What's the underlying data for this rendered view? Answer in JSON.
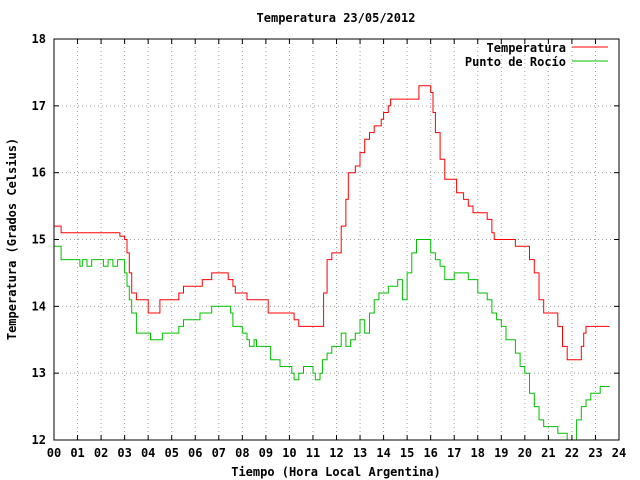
{
  "chart_data": {
    "type": "line",
    "title": "Temperatura 23/05/2012",
    "xlabel": "Tiempo (Hora Local Argentina)",
    "ylabel": "Temperatura (Grados Celsius)",
    "xlim": [
      0,
      24
    ],
    "ylim": [
      12,
      18
    ],
    "grid": true,
    "legend_position": "top-right",
    "x_ticks": [
      "00",
      "01",
      "02",
      "03",
      "04",
      "05",
      "06",
      "07",
      "08",
      "09",
      "10",
      "11",
      "12",
      "13",
      "14",
      "15",
      "16",
      "17",
      "18",
      "19",
      "20",
      "21",
      "22",
      "23",
      "24"
    ],
    "y_ticks": [
      "12",
      "13",
      "14",
      "15",
      "16",
      "17",
      "18"
    ],
    "series": [
      {
        "name": "Temperatura",
        "color": "#ff0000",
        "points": [
          [
            0.0,
            15.2
          ],
          [
            0.3,
            15.1
          ],
          [
            0.6,
            15.1
          ],
          [
            1.0,
            15.1
          ],
          [
            1.5,
            15.1
          ],
          [
            2.0,
            15.1
          ],
          [
            2.5,
            15.1
          ],
          [
            2.8,
            15.05
          ],
          [
            3.0,
            15.0
          ],
          [
            3.1,
            14.8
          ],
          [
            3.2,
            14.5
          ],
          [
            3.3,
            14.2
          ],
          [
            3.5,
            14.1
          ],
          [
            3.9,
            14.1
          ],
          [
            4.0,
            13.9
          ],
          [
            4.4,
            13.9
          ],
          [
            4.5,
            14.1
          ],
          [
            4.9,
            14.1
          ],
          [
            5.2,
            14.1
          ],
          [
            5.3,
            14.2
          ],
          [
            5.5,
            14.3
          ],
          [
            5.9,
            14.3
          ],
          [
            6.1,
            14.3
          ],
          [
            6.3,
            14.4
          ],
          [
            6.7,
            14.5
          ],
          [
            7.3,
            14.5
          ],
          [
            7.4,
            14.4
          ],
          [
            7.6,
            14.3
          ],
          [
            7.7,
            14.2
          ],
          [
            8.0,
            14.2
          ],
          [
            8.2,
            14.1
          ],
          [
            9.0,
            14.1
          ],
          [
            9.1,
            13.9
          ],
          [
            10.0,
            13.9
          ],
          [
            10.2,
            13.8
          ],
          [
            10.4,
            13.7
          ],
          [
            10.7,
            13.7
          ],
          [
            11.0,
            13.7
          ],
          [
            11.3,
            13.7
          ],
          [
            11.45,
            14.2
          ],
          [
            11.6,
            14.7
          ],
          [
            11.8,
            14.8
          ],
          [
            12.0,
            14.8
          ],
          [
            12.2,
            15.2
          ],
          [
            12.4,
            15.6
          ],
          [
            12.5,
            16.0
          ],
          [
            12.8,
            16.1
          ],
          [
            13.0,
            16.3
          ],
          [
            13.2,
            16.5
          ],
          [
            13.4,
            16.6
          ],
          [
            13.6,
            16.7
          ],
          [
            13.9,
            16.8
          ],
          [
            14.0,
            16.9
          ],
          [
            14.2,
            17.0
          ],
          [
            14.3,
            17.1
          ],
          [
            14.8,
            17.1
          ],
          [
            15.3,
            17.1
          ],
          [
            15.5,
            17.3
          ],
          [
            15.9,
            17.3
          ],
          [
            16.0,
            17.2
          ],
          [
            16.1,
            16.9
          ],
          [
            16.2,
            16.6
          ],
          [
            16.4,
            16.2
          ],
          [
            16.6,
            15.9
          ],
          [
            17.0,
            15.9
          ],
          [
            17.1,
            15.7
          ],
          [
            17.4,
            15.6
          ],
          [
            17.6,
            15.5
          ],
          [
            17.8,
            15.4
          ],
          [
            18.2,
            15.4
          ],
          [
            18.4,
            15.3
          ],
          [
            18.6,
            15.1
          ],
          [
            18.7,
            15.0
          ],
          [
            19.5,
            15.0
          ],
          [
            19.6,
            14.9
          ],
          [
            20.0,
            14.9
          ],
          [
            20.2,
            14.7
          ],
          [
            20.4,
            14.5
          ],
          [
            20.6,
            14.1
          ],
          [
            20.8,
            13.9
          ],
          [
            21.2,
            13.9
          ],
          [
            21.4,
            13.7
          ],
          [
            21.6,
            13.4
          ],
          [
            21.8,
            13.2
          ],
          [
            22.3,
            13.2
          ],
          [
            22.4,
            13.4
          ],
          [
            22.5,
            13.6
          ],
          [
            22.6,
            13.7
          ],
          [
            23.0,
            13.7
          ],
          [
            23.6,
            13.7
          ]
        ]
      },
      {
        "name": "Punto de Rocío",
        "color": "#00c000",
        "points": [
          [
            0.0,
            14.9
          ],
          [
            0.3,
            14.7
          ],
          [
            0.6,
            14.7
          ],
          [
            1.0,
            14.7
          ],
          [
            1.1,
            14.6
          ],
          [
            1.2,
            14.7
          ],
          [
            1.4,
            14.6
          ],
          [
            1.6,
            14.7
          ],
          [
            2.0,
            14.7
          ],
          [
            2.1,
            14.6
          ],
          [
            2.3,
            14.7
          ],
          [
            2.5,
            14.6
          ],
          [
            2.7,
            14.7
          ],
          [
            2.9,
            14.7
          ],
          [
            3.0,
            14.5
          ],
          [
            3.1,
            14.3
          ],
          [
            3.2,
            14.1
          ],
          [
            3.3,
            13.9
          ],
          [
            3.5,
            13.6
          ],
          [
            4.0,
            13.6
          ],
          [
            4.1,
            13.5
          ],
          [
            4.5,
            13.5
          ],
          [
            4.6,
            13.6
          ],
          [
            5.2,
            13.6
          ],
          [
            5.3,
            13.7
          ],
          [
            5.5,
            13.8
          ],
          [
            6.0,
            13.8
          ],
          [
            6.2,
            13.9
          ],
          [
            6.5,
            13.9
          ],
          [
            6.7,
            14.0
          ],
          [
            7.3,
            14.0
          ],
          [
            7.5,
            13.9
          ],
          [
            7.6,
            13.7
          ],
          [
            7.9,
            13.7
          ],
          [
            8.0,
            13.6
          ],
          [
            8.2,
            13.5
          ],
          [
            8.3,
            13.4
          ],
          [
            8.5,
            13.5
          ],
          [
            8.6,
            13.4
          ],
          [
            9.0,
            13.4
          ],
          [
            9.2,
            13.2
          ],
          [
            9.5,
            13.2
          ],
          [
            9.6,
            13.1
          ],
          [
            9.8,
            13.1
          ],
          [
            10.0,
            13.1
          ],
          [
            10.1,
            13.0
          ],
          [
            10.2,
            12.9
          ],
          [
            10.4,
            13.0
          ],
          [
            10.6,
            13.1
          ],
          [
            10.8,
            13.1
          ],
          [
            11.0,
            13.0
          ],
          [
            11.1,
            12.9
          ],
          [
            11.3,
            13.0
          ],
          [
            11.4,
            13.2
          ],
          [
            11.6,
            13.3
          ],
          [
            11.8,
            13.4
          ],
          [
            12.0,
            13.4
          ],
          [
            12.2,
            13.6
          ],
          [
            12.4,
            13.4
          ],
          [
            12.6,
            13.5
          ],
          [
            12.8,
            13.6
          ],
          [
            13.0,
            13.8
          ],
          [
            13.2,
            13.6
          ],
          [
            13.4,
            13.9
          ],
          [
            13.6,
            14.1
          ],
          [
            13.8,
            14.2
          ],
          [
            14.0,
            14.2
          ],
          [
            14.2,
            14.3
          ],
          [
            14.4,
            14.3
          ],
          [
            14.6,
            14.4
          ],
          [
            14.8,
            14.1
          ],
          [
            15.0,
            14.5
          ],
          [
            15.2,
            14.8
          ],
          [
            15.4,
            15.0
          ],
          [
            15.8,
            15.0
          ],
          [
            16.0,
            14.8
          ],
          [
            16.2,
            14.7
          ],
          [
            16.4,
            14.6
          ],
          [
            16.6,
            14.4
          ],
          [
            17.0,
            14.5
          ],
          [
            17.2,
            14.5
          ],
          [
            17.4,
            14.5
          ],
          [
            17.6,
            14.4
          ],
          [
            18.0,
            14.2
          ],
          [
            18.2,
            14.2
          ],
          [
            18.4,
            14.1
          ],
          [
            18.6,
            13.9
          ],
          [
            18.8,
            13.8
          ],
          [
            19.0,
            13.7
          ],
          [
            19.2,
            13.5
          ],
          [
            19.6,
            13.3
          ],
          [
            19.8,
            13.1
          ],
          [
            20.0,
            13.0
          ],
          [
            20.2,
            12.7
          ],
          [
            20.4,
            12.5
          ],
          [
            20.6,
            12.3
          ],
          [
            20.8,
            12.2
          ],
          [
            21.2,
            12.2
          ],
          [
            21.4,
            12.1
          ],
          [
            21.6,
            12.1
          ],
          [
            21.8,
            12.0
          ],
          [
            22.0,
            12.0
          ],
          [
            22.2,
            12.3
          ],
          [
            22.4,
            12.5
          ],
          [
            22.6,
            12.6
          ],
          [
            22.8,
            12.7
          ],
          [
            23.0,
            12.7
          ],
          [
            23.2,
            12.8
          ],
          [
            23.6,
            12.8
          ]
        ]
      }
    ]
  }
}
